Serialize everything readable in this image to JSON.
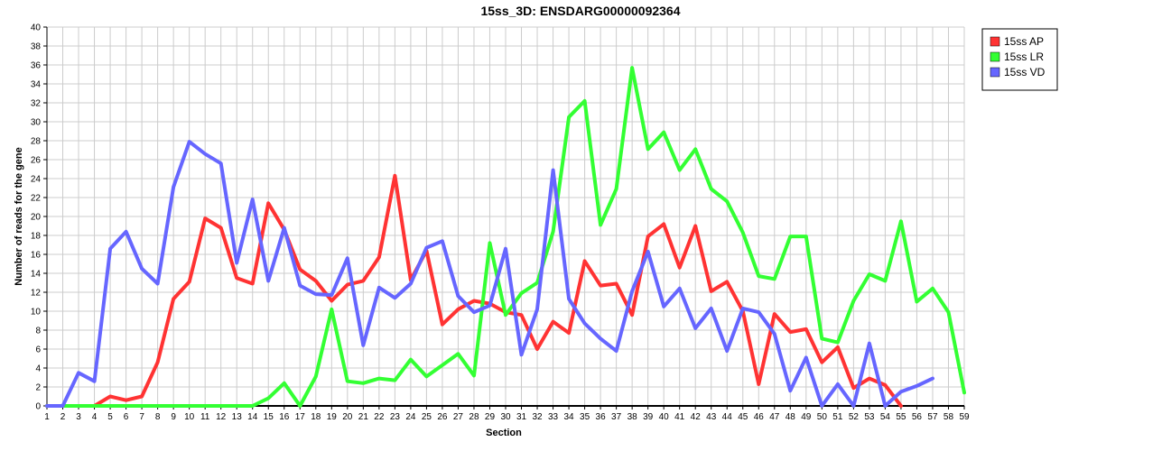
{
  "chart_data": {
    "type": "line",
    "title": "15ss_3D: ENSDARG00000092364",
    "xlabel": "Section",
    "ylabel": "Number of reads for the gene",
    "xlim": [
      1,
      59
    ],
    "ylim": [
      0,
      40
    ],
    "y_tick_step": 2,
    "x_tick_step": 1,
    "grid": true,
    "legend_position": "top-right",
    "series": [
      {
        "name": "15ss AP",
        "color": "#ff3333",
        "x": [
          1,
          2,
          3,
          4,
          5,
          6,
          7,
          8,
          9,
          10,
          11,
          12,
          13,
          14,
          15,
          16,
          17,
          18,
          19,
          20,
          21,
          22,
          23,
          24,
          25,
          26,
          27,
          28,
          29,
          30,
          31,
          32,
          33,
          34,
          35,
          36,
          37,
          38,
          39,
          40,
          41,
          42,
          43,
          44,
          45,
          46,
          47,
          48,
          49,
          50,
          51,
          52,
          53,
          54,
          55
        ],
        "values": [
          0,
          0,
          0,
          0,
          1,
          0.6,
          1,
          4.6,
          11.3,
          13.1,
          19.8,
          18.8,
          13.5,
          12.9,
          21.4,
          18.6,
          14.4,
          13.2,
          11.1,
          12.8,
          13.2,
          15.7,
          24.3,
          13.3,
          16.4,
          8.6,
          10.2,
          11.1,
          10.8,
          9.9,
          9.6,
          6,
          8.9,
          7.7,
          15.3,
          12.7,
          12.9,
          9.6,
          17.9,
          19.2,
          14.6,
          19,
          12.1,
          13.1,
          10,
          2.3,
          9.7,
          7.8,
          8.1,
          4.6,
          6.2,
          1.9,
          2.9,
          2.2,
          0
        ]
      },
      {
        "name": "15ss LR",
        "color": "#33ff33",
        "x": [
          1,
          2,
          3,
          4,
          5,
          6,
          7,
          8,
          9,
          10,
          11,
          12,
          13,
          14,
          15,
          16,
          17,
          18,
          19,
          20,
          21,
          22,
          23,
          24,
          25,
          26,
          27,
          28,
          29,
          30,
          31,
          32,
          33,
          34,
          35,
          36,
          37,
          38,
          39,
          40,
          41,
          42,
          43,
          44,
          45,
          46,
          47,
          48,
          49,
          50,
          51,
          52,
          53,
          54,
          55,
          56,
          57,
          58,
          59
        ],
        "values": [
          0,
          0,
          0,
          0,
          0,
          0,
          0,
          0,
          0,
          0,
          0,
          0,
          0,
          0,
          0.8,
          2.4,
          0,
          3.1,
          10.2,
          2.6,
          2.4,
          2.9,
          2.7,
          4.9,
          3.1,
          4.3,
          5.5,
          3.2,
          17.2,
          9.6,
          11.9,
          13,
          18.4,
          30.5,
          32.2,
          19.1,
          22.9,
          35.7,
          27.1,
          28.9,
          24.9,
          27.1,
          22.9,
          21.6,
          18.3,
          13.7,
          13.4,
          17.9,
          17.9,
          7.1,
          6.7,
          11.1,
          13.9,
          13.2,
          19.5,
          11,
          12.4,
          9.9,
          1.4
        ]
      },
      {
        "name": "15ss VD",
        "color": "#6666ff",
        "x": [
          1,
          2,
          3,
          4,
          5,
          6,
          7,
          8,
          9,
          10,
          11,
          12,
          13,
          14,
          15,
          16,
          17,
          18,
          19,
          20,
          21,
          22,
          23,
          24,
          25,
          26,
          27,
          28,
          29,
          30,
          31,
          32,
          33,
          34,
          35,
          36,
          37,
          38,
          39,
          40,
          41,
          42,
          43,
          44,
          45,
          46,
          47,
          48,
          49,
          50,
          51,
          52,
          53,
          54,
          55,
          56,
          57
        ],
        "values": [
          0,
          0,
          3.5,
          2.6,
          16.6,
          18.4,
          14.5,
          12.9,
          23.1,
          27.9,
          26.6,
          25.6,
          15.1,
          21.8,
          13.2,
          18.8,
          12.7,
          11.8,
          11.7,
          15.6,
          6.4,
          12.5,
          11.4,
          12.9,
          16.7,
          17.4,
          11.6,
          9.9,
          10.6,
          16.6,
          5.4,
          10.2,
          24.9,
          11.3,
          8.7,
          7.1,
          5.8,
          12.1,
          16.3,
          10.5,
          12.4,
          8.2,
          10.3,
          5.8,
          10.3,
          9.9,
          7.6,
          1.6,
          5.1,
          0,
          2.3,
          0,
          6.6,
          0,
          1.5,
          2.1,
          2.9
        ]
      }
    ]
  }
}
